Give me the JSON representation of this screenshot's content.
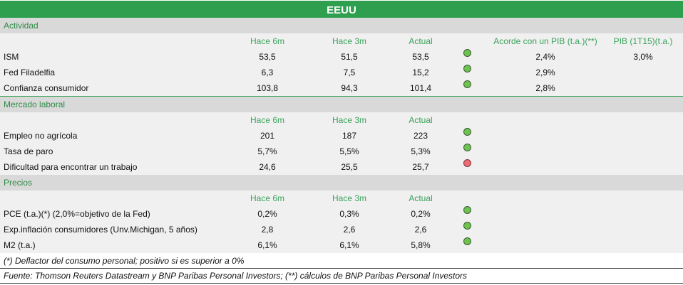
{
  "title": "EEUU",
  "sections": {
    "actividad": "Actividad",
    "laboral": "Mercado laboral",
    "precios": "Precios"
  },
  "headers": {
    "h6m": "Hace 6m",
    "h3m": "Hace 3m",
    "actual": "Actual",
    "acorde": "Acorde con un PIB (t.a.)(**)",
    "pib": "PIB (1T15)(t.a.)"
  },
  "actividad": [
    {
      "label": "ISM",
      "h6m": "53,5",
      "h3m": "51,5",
      "actual": "53,5",
      "signal": "green",
      "acorde": "2,4%",
      "pib": "3,0%"
    },
    {
      "label": "Fed Filadelfia",
      "h6m": "6,3",
      "h3m": "7,5",
      "actual": "15,2",
      "signal": "green",
      "acorde": "2,9%",
      "pib": ""
    },
    {
      "label": "Confianza consumidor",
      "h6m": "103,8",
      "h3m": "94,3",
      "actual": "101,4",
      "signal": "green",
      "acorde": "2,8%",
      "pib": ""
    }
  ],
  "laboral": [
    {
      "label": "Empleo no agrícola",
      "h6m": "201",
      "h3m": "187",
      "actual": "223",
      "signal": "green"
    },
    {
      "label": "Tasa de paro",
      "h6m": "5,7%",
      "h3m": "5,5%",
      "actual": "5,3%",
      "signal": "green"
    },
    {
      "label": "Dificultad para encontrar un trabajo",
      "h6m": "24,6",
      "h3m": "25,5",
      "actual": "25,7",
      "signal": "red"
    }
  ],
  "precios": [
    {
      "label": "PCE (t.a.)(*) (2,0%=objetivo de la Fed)",
      "h6m": "0,2%",
      "h3m": "0,3%",
      "actual": "0,2%",
      "signal": "green"
    },
    {
      "label": "Exp.inflación consumidores (Unv.Michigan, 5 años)",
      "h6m": "2,8",
      "h3m": "2,6",
      "actual": "2,6",
      "signal": "green"
    },
    {
      "label": "M2 (t.a.)",
      "h6m": "6,1%",
      "h3m": "6,1%",
      "actual": "5,8%",
      "signal": "green"
    }
  ],
  "footnotes": {
    "deflactor": "(*) Deflactor del consumo personal; positivo si es superior a 0%",
    "fuente": "Fuente: Thomson Reuters Datastream y BNP Paribas Personal Investors; (**) cálculos de BNP Paribas Personal Investors"
  }
}
